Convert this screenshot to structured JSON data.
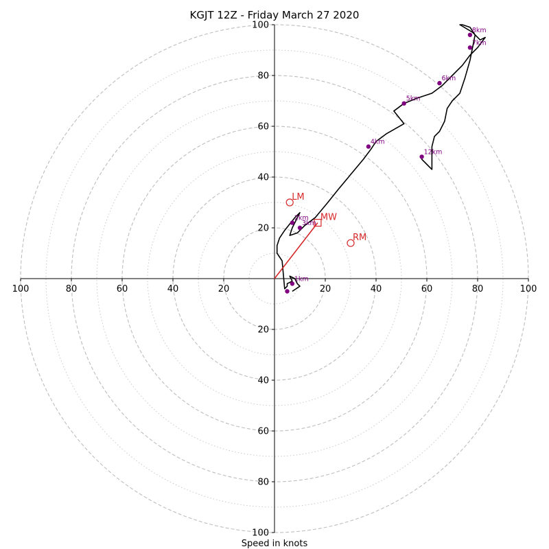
{
  "chart_data": {
    "type": "hodograph",
    "title": "KGJT 12Z - Friday March 27 2020",
    "xlabel": "Speed in knots",
    "max_speed": 100,
    "rings": {
      "major": [
        20,
        40,
        60,
        80,
        100
      ],
      "minor": [
        10,
        30,
        50,
        70,
        90
      ],
      "major_style": "dashed",
      "minor_style": "dotted"
    },
    "x_ticks": [
      "100",
      "80",
      "60",
      "40",
      "20",
      "20",
      "40",
      "60",
      "80",
      "100"
    ],
    "y_ticks": [
      "100",
      "80",
      "60",
      "40",
      "20",
      "20",
      "40",
      "60",
      "80",
      "100"
    ],
    "trace": [
      [
        7,
        -5
      ],
      [
        10,
        -3
      ],
      [
        9,
        -2
      ],
      [
        8,
        0
      ],
      [
        6,
        1
      ],
      [
        7,
        -1
      ],
      [
        5,
        -2
      ],
      [
        5,
        -3
      ],
      [
        4,
        -4
      ],
      [
        3,
        7
      ],
      [
        1,
        10
      ],
      [
        1,
        13
      ],
      [
        2,
        16
      ],
      [
        4,
        19
      ],
      [
        6,
        21.5
      ],
      [
        8,
        24
      ],
      [
        10,
        26
      ],
      [
        9,
        24
      ],
      [
        8,
        22
      ],
      [
        7,
        20
      ],
      [
        6,
        17
      ],
      [
        9,
        18
      ],
      [
        12,
        21
      ],
      [
        16,
        24
      ],
      [
        21,
        30
      ],
      [
        25,
        35
      ],
      [
        30,
        41
      ],
      [
        35,
        47
      ],
      [
        38,
        51
      ],
      [
        40,
        54
      ],
      [
        44,
        57
      ],
      [
        51,
        61
      ],
      [
        47,
        66
      ],
      [
        51,
        69
      ],
      [
        56,
        71
      ],
      [
        62,
        73
      ],
      [
        66,
        76
      ],
      [
        70,
        80
      ],
      [
        74,
        84
      ],
      [
        77,
        88
      ],
      [
        80,
        91
      ],
      [
        83,
        95
      ],
      [
        81,
        94
      ],
      [
        78,
        97
      ],
      [
        73,
        100
      ],
      [
        74,
        100
      ],
      [
        77,
        99
      ],
      [
        79,
        96
      ],
      [
        78,
        91
      ],
      [
        77,
        86
      ],
      [
        75,
        79
      ],
      [
        73,
        73
      ],
      [
        70,
        70
      ],
      [
        68,
        67
      ],
      [
        67,
        62
      ],
      [
        65,
        58
      ],
      [
        63,
        56
      ],
      [
        62,
        52
      ],
      [
        62,
        47
      ],
      [
        62,
        43
      ],
      [
        60,
        45
      ],
      [
        58,
        47
      ],
      [
        58,
        48
      ]
    ],
    "trace_color": "#000000",
    "height_points": [
      {
        "label": "1km",
        "u": 7,
        "v": -2
      },
      {
        "label": "",
        "u": 5,
        "v": -5
      },
      {
        "label": "2km",
        "u": 7,
        "v": 22
      },
      {
        "label": "3km",
        "u": 10,
        "v": 20
      },
      {
        "label": "4km",
        "u": 37,
        "v": 52
      },
      {
        "label": "5km",
        "u": 51,
        "v": 69
      },
      {
        "label": "6km",
        "u": 65,
        "v": 77
      },
      {
        "label": "7km",
        "u": 77,
        "v": 91
      },
      {
        "label": "8km",
        "u": 77,
        "v": 96
      },
      {
        "label": "12km",
        "u": 58,
        "v": 48
      }
    ],
    "point_color": "#800080",
    "storm_motion": {
      "color": "#d62728",
      "mean_wind": {
        "label": "MW",
        "u": 17,
        "v": 22
      },
      "left_mover": {
        "label": "LM",
        "u": 6,
        "v": 30
      },
      "right_mover": {
        "label": "RM",
        "u": 30,
        "v": 14
      }
    }
  }
}
